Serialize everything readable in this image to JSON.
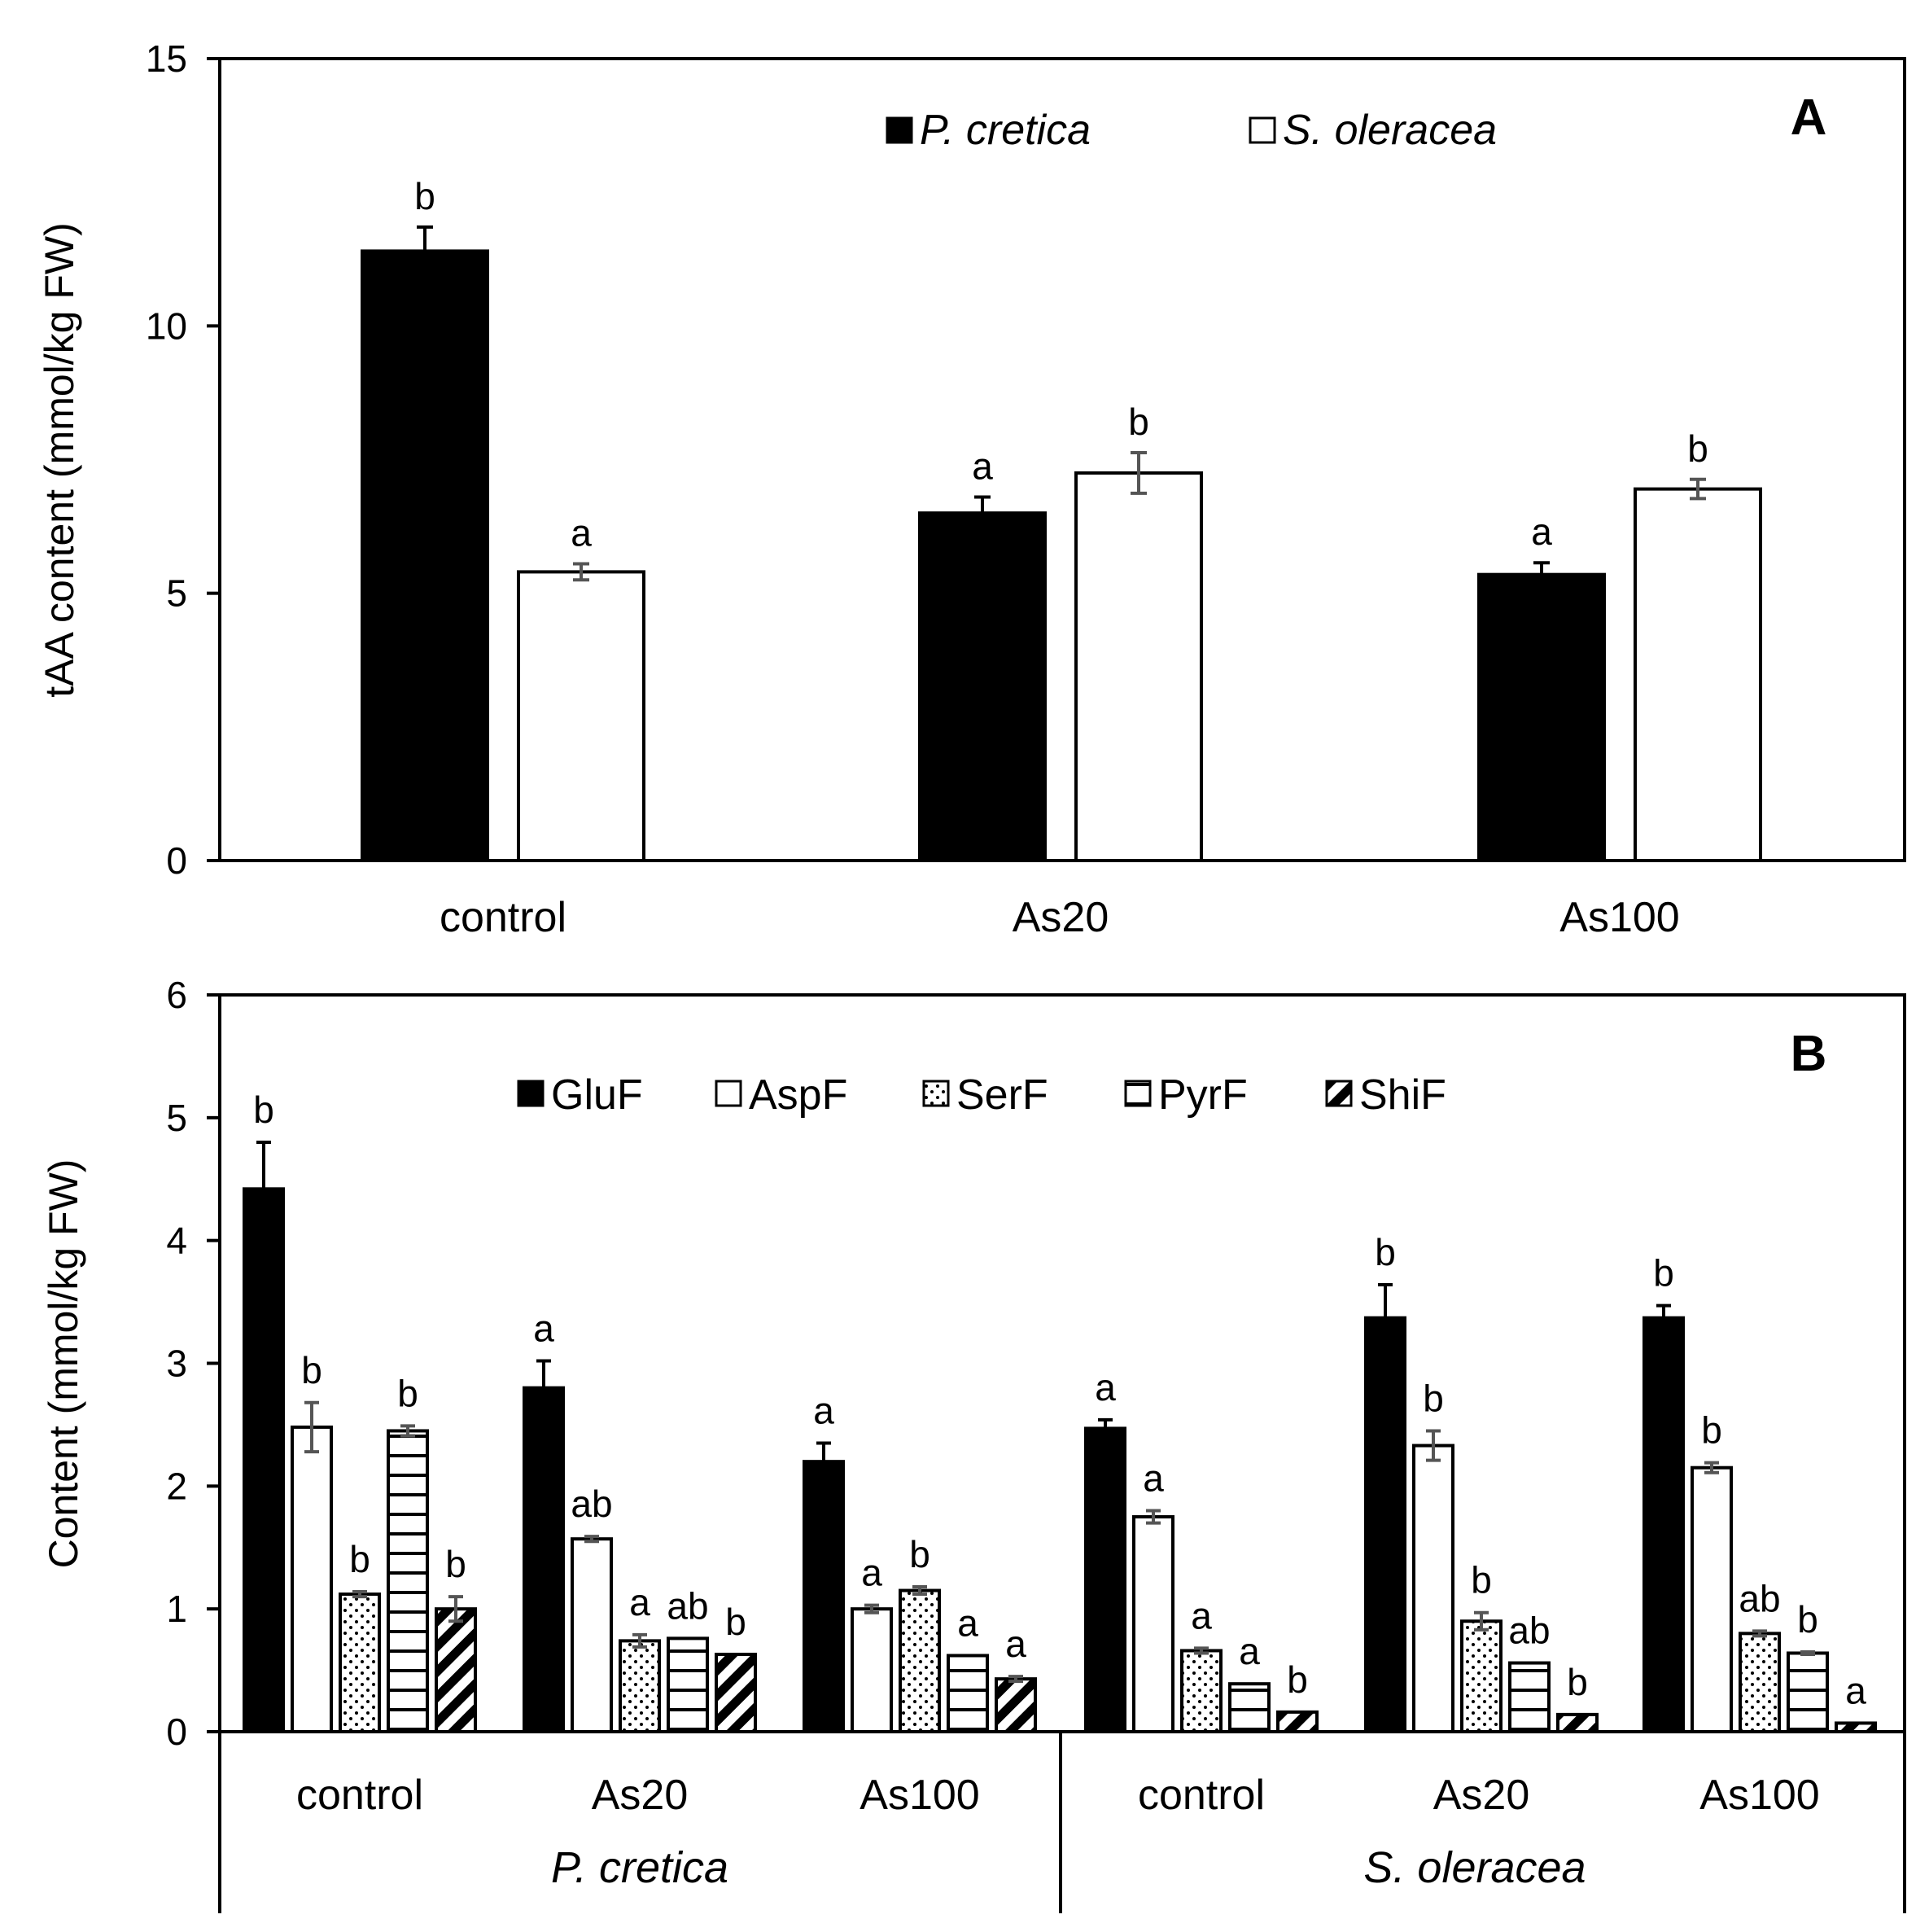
{
  "chart_data": [
    {
      "type": "bar",
      "panel": "A",
      "ylabel": "tAA content (mmol/kg FW)",
      "ylim": [
        0,
        15
      ],
      "yticks": [
        0,
        5,
        10,
        15
      ],
      "ytick_labels": [
        "0",
        "5",
        "10",
        "15"
      ],
      "categories": [
        "control",
        "As20",
        "As100"
      ],
      "series": [
        {
          "name": "P. cretica",
          "fill": "black",
          "values": [
            11.4,
            6.5,
            5.35
          ],
          "errors": [
            0.45,
            0.3,
            0.22
          ],
          "letters": [
            "b",
            "a",
            "a"
          ]
        },
        {
          "name": "S. oleracea",
          "fill": "white",
          "values": [
            5.4,
            7.25,
            6.95
          ],
          "errors": [
            0.15,
            0.38,
            0.18
          ],
          "letters": [
            "a",
            "b",
            "b"
          ]
        }
      ]
    },
    {
      "type": "bar",
      "panel": "B",
      "ylabel": "Content (mmol/kg FW)",
      "ylim": [
        0,
        6
      ],
      "yticks": [
        0,
        1,
        2,
        3,
        4,
        5,
        6
      ],
      "ytick_labels": [
        "0",
        "1",
        "2",
        "3",
        "4",
        "5",
        "6"
      ],
      "categories": [
        "control",
        "As20",
        "As100",
        "control",
        "As20",
        "As100"
      ],
      "groups": [
        {
          "label": "P. cretica",
          "categories": [
            0,
            1,
            2
          ]
        },
        {
          "label": "S. oleracea",
          "categories": [
            3,
            4,
            5
          ]
        }
      ],
      "series": [
        {
          "name": "GluF",
          "pattern": "solid",
          "values": [
            4.42,
            2.8,
            2.2,
            2.47,
            3.37,
            3.37
          ],
          "errors": [
            0.38,
            0.22,
            0.15,
            0.07,
            0.27,
            0.1
          ],
          "letters": [
            "b",
            "a",
            "a",
            "a",
            "b",
            "b"
          ]
        },
        {
          "name": "AspF",
          "pattern": "white",
          "values": [
            2.48,
            1.57,
            1.0,
            1.75,
            2.33,
            2.15
          ],
          "errors": [
            0.2,
            0.02,
            0.03,
            0.05,
            0.12,
            0.04
          ],
          "letters": [
            "b",
            "ab",
            "a",
            "a",
            "b",
            "b"
          ]
        },
        {
          "name": "SerF",
          "pattern": "dots",
          "values": [
            1.12,
            0.74,
            1.15,
            0.66,
            0.9,
            0.8
          ],
          "errors": [
            0.02,
            0.05,
            0.03,
            0.02,
            0.07,
            0.02
          ],
          "letters": [
            "b",
            "a",
            "b",
            "a",
            "b",
            "ab"
          ]
        },
        {
          "name": "PyrF",
          "pattern": "hlines",
          "values": [
            2.45,
            0.76,
            0.62,
            0.39,
            0.56,
            0.64
          ],
          "errors": [
            0.04,
            0.0,
            0.0,
            0.0,
            0.0,
            0.01
          ],
          "letters": [
            "b",
            "ab",
            "a",
            "a",
            "ab",
            "b"
          ]
        },
        {
          "name": "ShiF",
          "pattern": "diag",
          "values": [
            1.0,
            0.63,
            0.43,
            0.16,
            0.14,
            0.07
          ],
          "errors": [
            0.1,
            0.0,
            0.02,
            0.0,
            0.0,
            0.0
          ],
          "letters": [
            "b",
            "b",
            "a",
            "b",
            "b",
            "a"
          ]
        }
      ]
    }
  ]
}
